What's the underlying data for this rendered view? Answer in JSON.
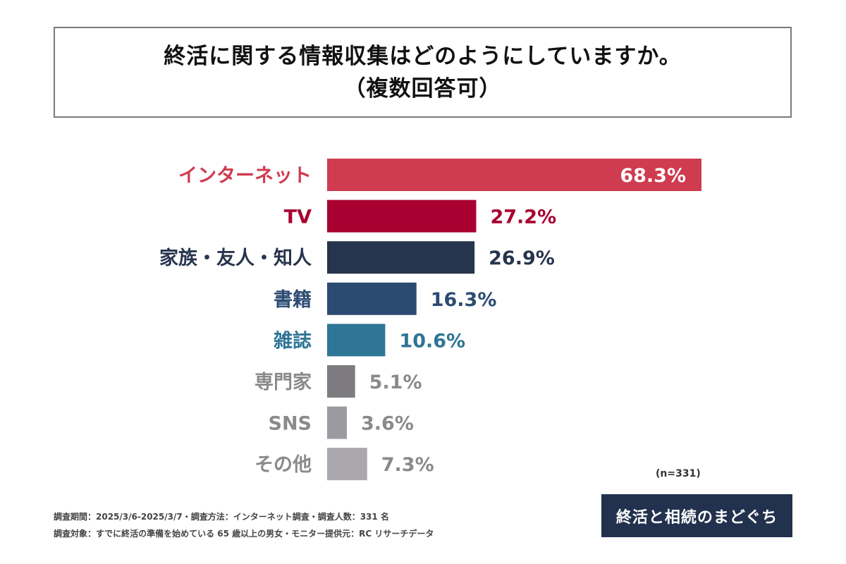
{
  "title_line1": "終活に関する情報収集はどのようにしていますか。",
  "title_line2": "（複数回答可）",
  "chart_data": {
    "type": "bar",
    "orientation": "horizontal",
    "categories": [
      "インターネット",
      "TV",
      "家族・友人・知人",
      "書籍",
      "雑誌",
      "専門家",
      "SNS",
      "その他"
    ],
    "values": [
      68.3,
      27.2,
      26.9,
      16.3,
      10.6,
      5.1,
      3.6,
      7.3
    ],
    "value_labels": [
      "68.3%",
      "27.2%",
      "26.9%",
      "16.3%",
      "10.6%",
      "5.1%",
      "3.6%",
      "7.3%"
    ],
    "bar_colors": [
      "#cf3b4f",
      "#a80030",
      "#27344d",
      "#2c4b72",
      "#2f7595",
      "#7d7b80",
      "#9c9a9f",
      "#aaa8ac"
    ],
    "label_colors": [
      "#cf3b4f",
      "#a80030",
      "#27344d",
      "#2c4b72",
      "#2f7595",
      "#8a8a8a",
      "#8a8a8a",
      "#8a8a8a"
    ],
    "xlim": [
      0,
      68.3
    ],
    "grid": false
  },
  "sample_size": "(n=331)",
  "footer_line1": "調査期間：2025/3/6-2025/3/7・調査方法：インターネット調査・調査人数：331 名",
  "footer_line2": "調査対象：すでに終活の準備を始めている 65 歳以上の男女・モニター提供元：RC リサーチデータ",
  "logo_text": "終活と相続のまどぐち"
}
